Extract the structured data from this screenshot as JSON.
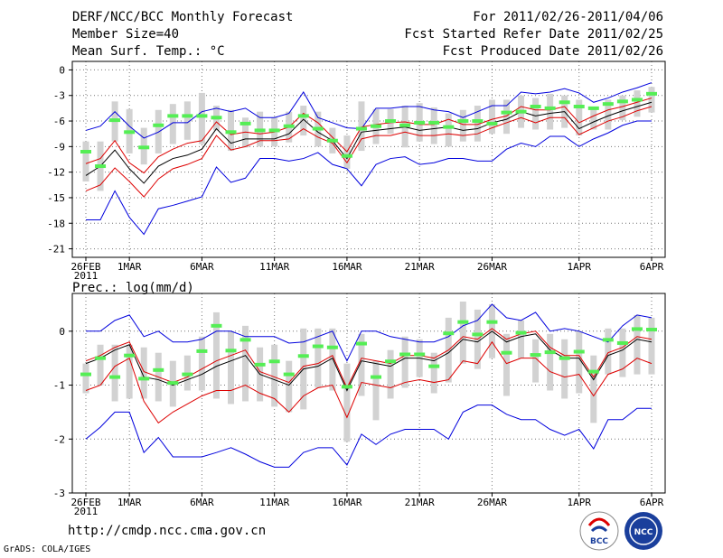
{
  "header": {
    "line1_left": "DERF/NCC/BCC Monthly Forecast",
    "line2_left": "Member Size=40",
    "line3_left": "Mean Surf. Temp.: °C",
    "line1_right": "For 2011/02/26-2011/04/06",
    "line2_right": "Fcst Started Refer Date 2011/02/25",
    "line3_right": "Fcst Produced Date 2011/02/26"
  },
  "precip_label": "Prec.: log(mm/d)",
  "footer": {
    "url": "http://cmdp.ncc.cma.gov.cn",
    "credit": "GrADS: COLA/IGES"
  },
  "logos": {
    "left": "BCC",
    "right": "NCC"
  },
  "colors": {
    "band": "#d2d2d2",
    "median": "#55ee55",
    "envelope": "#0000dd",
    "spread": "#dd0000",
    "mean": "#000000"
  },
  "chart_data": [
    {
      "type": "line",
      "title": "Mean Surf. Temp.: °C",
      "x_tick_labels": [
        "26FEB",
        "1MAR",
        "6MAR",
        "11MAR",
        "16MAR",
        "21MAR",
        "26MAR",
        "1APR",
        "6APR"
      ],
      "x_tick_days": [
        0,
        3,
        8,
        13,
        18,
        23,
        28,
        34,
        39
      ],
      "x_year_label": "2011",
      "days": 40,
      "ylim": [
        -22,
        1
      ],
      "yticks": [
        0,
        -3,
        -6,
        -9,
        -12,
        -15,
        -18,
        -21
      ],
      "series": [
        {
          "name": "max",
          "values": [
            -17.6,
            -17.6,
            -14.2,
            -17.3,
            -19.3,
            -16.3,
            -15.9,
            -15.4,
            -14.9,
            -11.4,
            -13.2,
            -12.7,
            -10.4,
            -10.4,
            -10.7,
            -10.4,
            -9.7,
            -11.1,
            -11.6,
            -13.6,
            -11.1,
            -10.4,
            -10.2,
            -11.1,
            -10.9,
            -10.4,
            -10.4,
            -10.7,
            -10.7,
            -9.3,
            -8.6,
            -9.0,
            -7.8,
            -7.8,
            -9.0,
            -8.1,
            -7.4,
            -6.5,
            -6.0,
            -6.0
          ]
        },
        {
          "name": "min",
          "values": [
            -7.1,
            -6.6,
            -4.9,
            -6.6,
            -8.0,
            -7.3,
            -6.2,
            -6.2,
            -4.9,
            -4.5,
            -4.9,
            -4.5,
            -5.6,
            -5.6,
            -5.1,
            -2.6,
            -5.6,
            -6.2,
            -6.8,
            -6.9,
            -4.5,
            -4.5,
            -4.3,
            -4.3,
            -4.7,
            -4.9,
            -5.6,
            -4.9,
            -4.2,
            -4.2,
            -2.6,
            -2.8,
            -2.6,
            -2.2,
            -2.7,
            -3.8,
            -3.3,
            -2.6,
            -2.1,
            -1.5
          ]
        },
        {
          "name": "p_low",
          "values": [
            -14.2,
            -13.5,
            -11.5,
            -13.1,
            -14.9,
            -12.8,
            -11.6,
            -11.1,
            -10.4,
            -7.7,
            -9.4,
            -9.0,
            -8.3,
            -8.3,
            -8.1,
            -6.9,
            -7.9,
            -8.6,
            -10.9,
            -8.1,
            -7.7,
            -7.7,
            -7.3,
            -7.7,
            -7.7,
            -7.5,
            -7.7,
            -7.5,
            -6.8,
            -6.2,
            -5.6,
            -6.2,
            -5.6,
            -5.6,
            -7.6,
            -6.8,
            -6.0,
            -5.5,
            -4.8,
            -4.3
          ]
        },
        {
          "name": "p_high",
          "values": [
            -11.0,
            -10.4,
            -8.3,
            -10.9,
            -12.1,
            -10.2,
            -9.3,
            -8.6,
            -8.3,
            -6.1,
            -7.6,
            -7.3,
            -7.5,
            -7.3,
            -6.7,
            -5.1,
            -6.2,
            -7.9,
            -9.6,
            -6.7,
            -6.4,
            -6.2,
            -6.1,
            -6.4,
            -6.4,
            -5.8,
            -6.4,
            -6.4,
            -5.8,
            -5.4,
            -4.3,
            -4.7,
            -4.7,
            -4.3,
            -6.2,
            -5.4,
            -4.7,
            -4.3,
            -3.8,
            -3.3
          ]
        },
        {
          "name": "mean",
          "values": [
            -12.4,
            -11.3,
            -9.4,
            -11.6,
            -13.3,
            -11.3,
            -10.4,
            -10.0,
            -9.3,
            -6.9,
            -8.6,
            -8.1,
            -8.1,
            -8.1,
            -7.5,
            -5.8,
            -7.3,
            -8.3,
            -10.4,
            -7.3,
            -7.1,
            -6.9,
            -6.7,
            -7.1,
            -6.9,
            -6.7,
            -7.1,
            -6.9,
            -6.2,
            -5.8,
            -4.9,
            -5.4,
            -5.1,
            -4.9,
            -6.9,
            -6.1,
            -5.4,
            -4.8,
            -4.3,
            -3.8
          ]
        },
        {
          "name": "median",
          "values": [
            -9.6,
            -11.3,
            -5.9,
            -7.3,
            -9.1,
            -6.5,
            -5.4,
            -5.4,
            -5.4,
            -5.6,
            -7.3,
            -6.3,
            -7.1,
            -7.1,
            -6.6,
            -5.4,
            -6.9,
            -8.3,
            -10.1,
            -6.9,
            -6.6,
            -6.0,
            -6.5,
            -6.2,
            -6.2,
            -6.7,
            -6.0,
            -6.0,
            -6.3,
            -5.0,
            -4.9,
            -4.3,
            -4.5,
            -3.8,
            -4.3,
            -4.5,
            -4.0,
            -3.7,
            -3.5,
            -2.8
          ]
        },
        {
          "name": "box_top",
          "values": [
            -8.4,
            -8.4,
            -3.7,
            -4.6,
            -6.8,
            -4.7,
            -4.0,
            -3.7,
            -2.7,
            -4.2,
            -4.7,
            -5.6,
            -4.9,
            -5.6,
            -4.9,
            -4.2,
            -4.9,
            -6.8,
            -7.7,
            -3.7,
            -4.6,
            -4.6,
            -4.2,
            -3.9,
            -4.4,
            -5.1,
            -4.7,
            -4.2,
            -3.5,
            -3.5,
            -3.0,
            -3.3,
            -2.8,
            -3.0,
            -3.5,
            -4.4,
            -3.5,
            -3.0,
            -2.4,
            -2.0
          ]
        },
        {
          "name": "box_bottom",
          "values": [
            -13.1,
            -14.2,
            -8.4,
            -9.8,
            -11.1,
            -9.8,
            -8.7,
            -8.2,
            -8.7,
            -7.1,
            -9.5,
            -9.1,
            -9.0,
            -9.0,
            -8.5,
            -7.7,
            -9.0,
            -9.8,
            -11.6,
            -9.5,
            -8.7,
            -7.5,
            -9.1,
            -8.4,
            -8.7,
            -9.0,
            -8.4,
            -8.4,
            -7.5,
            -7.5,
            -6.8,
            -7.0,
            -7.0,
            -6.8,
            -7.7,
            -7.0,
            -7.0,
            -5.9,
            -5.5,
            -5.0
          ]
        }
      ]
    },
    {
      "type": "line",
      "title": "Prec.: log(mm/d)",
      "x_tick_labels": [
        "26FEB",
        "1MAR",
        "6MAR",
        "11MAR",
        "16MAR",
        "21MAR",
        "26MAR",
        "1APR",
        "6APR"
      ],
      "x_tick_days": [
        0,
        3,
        8,
        13,
        18,
        23,
        28,
        34,
        39
      ],
      "x_year_label": "2011",
      "days": 40,
      "ylim": [
        -3,
        0.7
      ],
      "yticks": [
        0,
        -1,
        -2,
        -3
      ],
      "series": [
        {
          "name": "max",
          "values": [
            -2.0,
            -1.78,
            -1.5,
            -1.5,
            -2.25,
            -1.97,
            -2.33,
            -2.33,
            -2.33,
            -2.25,
            -2.16,
            -2.28,
            -2.42,
            -2.52,
            -2.52,
            -2.25,
            -2.16,
            -2.16,
            -2.48,
            -1.91,
            -2.1,
            -1.91,
            -1.82,
            -1.82,
            -1.82,
            -2.0,
            -1.5,
            -1.37,
            -1.37,
            -1.54,
            -1.64,
            -1.64,
            -1.82,
            -1.93,
            -1.82,
            -2.18,
            -1.64,
            -1.64,
            -1.43,
            -1.43
          ]
        },
        {
          "name": "min",
          "values": [
            0.0,
            0.0,
            0.2,
            0.3,
            -0.1,
            0.0,
            -0.2,
            -0.2,
            -0.15,
            0.0,
            0.0,
            -0.1,
            -0.1,
            -0.1,
            -0.22,
            -0.2,
            -0.1,
            0.0,
            -0.55,
            0.0,
            0.0,
            -0.1,
            -0.15,
            -0.2,
            -0.2,
            -0.1,
            0.1,
            0.2,
            0.5,
            0.25,
            0.2,
            0.35,
            0.0,
            0.05,
            0.0,
            -0.1,
            -0.2,
            0.1,
            0.3,
            0.25
          ]
        },
        {
          "name": "p_low",
          "values": [
            -1.1,
            -1.0,
            -0.65,
            -0.5,
            -1.3,
            -1.7,
            -1.5,
            -1.35,
            -1.2,
            -1.1,
            -1.1,
            -1.0,
            -1.15,
            -1.25,
            -1.5,
            -1.2,
            -1.05,
            -1.0,
            -1.6,
            -0.95,
            -1.0,
            -1.05,
            -0.95,
            -0.9,
            -0.95,
            -0.9,
            -0.55,
            -0.6,
            -0.2,
            -0.6,
            -0.5,
            -0.5,
            -0.75,
            -0.85,
            -0.8,
            -1.2,
            -0.8,
            -0.7,
            -0.5,
            -0.6
          ]
        },
        {
          "name": "p_high",
          "values": [
            -0.55,
            -0.45,
            -0.3,
            -0.2,
            -0.75,
            -0.85,
            -0.95,
            -0.85,
            -0.7,
            -0.55,
            -0.45,
            -0.35,
            -0.75,
            -0.85,
            -0.95,
            -0.65,
            -0.6,
            -0.45,
            -1.05,
            -0.5,
            -0.55,
            -0.6,
            -0.45,
            -0.45,
            -0.5,
            -0.35,
            -0.1,
            -0.15,
            0.05,
            -0.15,
            -0.05,
            0.0,
            -0.3,
            -0.45,
            -0.45,
            -0.85,
            -0.4,
            -0.3,
            -0.1,
            -0.15
          ]
        },
        {
          "name": "mean",
          "values": [
            -0.6,
            -0.5,
            -0.35,
            -0.25,
            -0.85,
            -0.9,
            -1.0,
            -0.9,
            -0.8,
            -0.65,
            -0.55,
            -0.45,
            -0.8,
            -0.9,
            -1.0,
            -0.7,
            -0.65,
            -0.5,
            -1.1,
            -0.55,
            -0.6,
            -0.65,
            -0.5,
            -0.5,
            -0.55,
            -0.4,
            -0.15,
            -0.2,
            0.0,
            -0.2,
            -0.1,
            -0.05,
            -0.35,
            -0.5,
            -0.5,
            -0.9,
            -0.45,
            -0.35,
            -0.15,
            -0.2
          ]
        },
        {
          "name": "median",
          "values": [
            -0.8,
            -0.5,
            -0.85,
            -0.45,
            -0.88,
            -0.72,
            -0.96,
            -0.8,
            -0.37,
            0.1,
            -0.36,
            -0.16,
            -0.62,
            -0.56,
            -0.8,
            -0.46,
            -0.28,
            -0.3,
            -1.03,
            -0.23,
            -0.85,
            -0.56,
            -0.43,
            -0.43,
            -0.65,
            -0.04,
            0.17,
            -0.06,
            0.17,
            -0.4,
            -0.03,
            -0.44,
            -0.39,
            -0.5,
            -0.38,
            -0.75,
            -0.16,
            -0.22,
            0.04,
            0.03
          ]
        },
        {
          "name": "box_top",
          "values": [
            -0.6,
            -0.25,
            -0.25,
            -0.25,
            -0.3,
            -0.4,
            -0.55,
            -0.45,
            -0.1,
            0.35,
            0.0,
            0.1,
            -0.3,
            -0.25,
            -0.55,
            0.05,
            0.05,
            0.05,
            -0.6,
            -0.05,
            -0.55,
            -0.35,
            -0.1,
            -0.15,
            -0.4,
            0.25,
            0.55,
            0.4,
            0.5,
            -0.05,
            0.2,
            -0.15,
            -0.05,
            -0.15,
            0.0,
            -0.45,
            0.05,
            0.05,
            0.3,
            0.25
          ]
        },
        {
          "name": "box_bottom",
          "values": [
            -1.15,
            -1.0,
            -1.3,
            -1.25,
            -1.25,
            -1.3,
            -1.4,
            -1.1,
            -1.1,
            -1.25,
            -1.35,
            -1.3,
            -1.3,
            -1.4,
            -1.5,
            -1.45,
            -1.05,
            -1.1,
            -2.05,
            -1.2,
            -1.65,
            -1.25,
            -1.05,
            -0.85,
            -1.15,
            -0.95,
            -0.6,
            -0.7,
            -0.5,
            -1.2,
            -0.5,
            -0.95,
            -1.1,
            -1.25,
            -1.15,
            -1.7,
            -0.8,
            -0.85,
            -0.8,
            -0.8
          ]
        }
      ]
    }
  ]
}
